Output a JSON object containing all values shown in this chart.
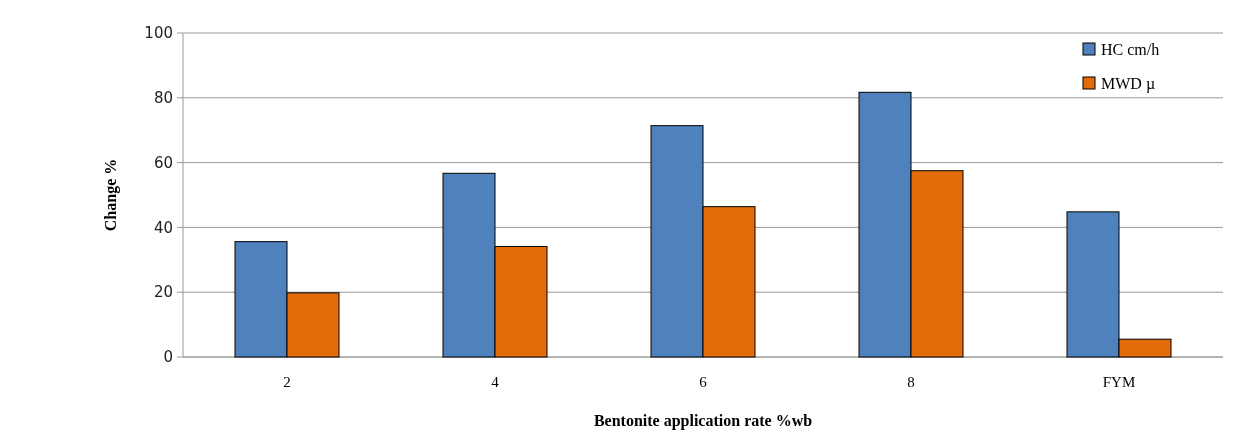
{
  "chart_data": {
    "type": "bar",
    "xlabel": "Bentonite application rate %wb",
    "ylabel": "Change %",
    "categories": [
      "2",
      "4",
      "6",
      "8",
      "FYM"
    ],
    "series": [
      {
        "name": "HC cm/h",
        "color": "#4f81bd",
        "values": [
          35.6,
          56.7,
          71.4,
          81.7,
          44.8
        ]
      },
      {
        "name": "MWD µ",
        "color": "#e36c0a",
        "values": [
          19.8,
          34.1,
          46.4,
          57.5,
          5.5
        ]
      }
    ],
    "ylim": [
      0,
      100
    ],
    "yticks": [
      0,
      20,
      40,
      60,
      80,
      100
    ],
    "grid": "y",
    "legend": "top right"
  }
}
